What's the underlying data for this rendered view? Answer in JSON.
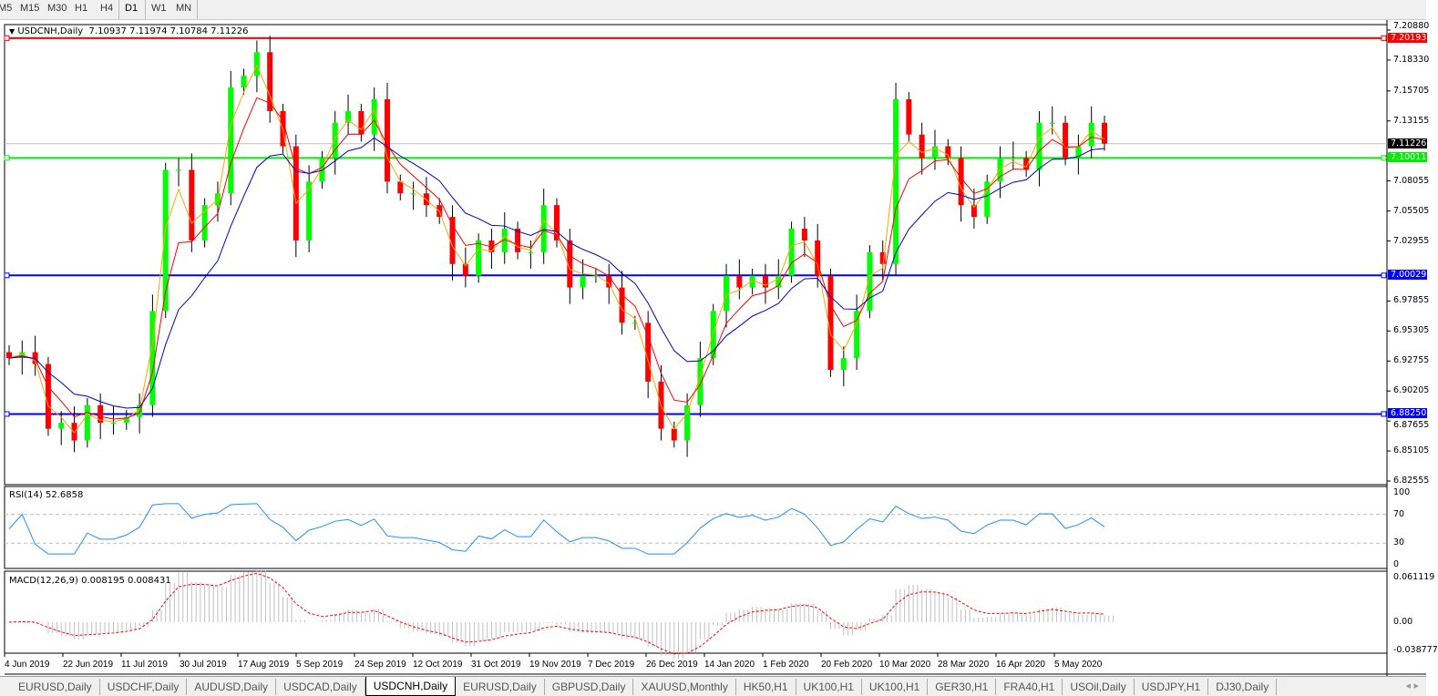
{
  "toolbar": {
    "timeframes": [
      "M5",
      "M15",
      "M30",
      "H1",
      "H4",
      "D1",
      "W1",
      "MN"
    ],
    "active": "D1"
  },
  "header": {
    "symbol": "USDCNH,Daily",
    "ohlc": "7.10937 7.11974 7.10784 7.11226"
  },
  "rsi": {
    "label": "RSI(14) 52.6858",
    "levels": [
      "100",
      "70",
      "30",
      "0"
    ]
  },
  "macd": {
    "label": "MACD(12,26,9) 0.008195 0.008431",
    "levels": [
      "0.061119",
      "0.00",
      "-0.038777"
    ]
  },
  "colors": {
    "bull": "#00ff00",
    "bear": "#ff0000",
    "ma_fast": "#ffa500",
    "ma_mid": "#ff0000",
    "ma_slow": "#0000cc",
    "rsi": "#1e90ff",
    "macd_signal": "#ff0000"
  },
  "levels": [
    {
      "value": 7.20193,
      "label": "7.20193",
      "color": "#ff0000"
    },
    {
      "value": 7.10011,
      "label": "7.10011",
      "color": "#00ee00"
    },
    {
      "value": 7.00029,
      "label": "7.00029",
      "color": "#0000ff"
    },
    {
      "value": 6.8825,
      "label": "6.88250",
      "color": "#0000ff"
    }
  ],
  "current_price": {
    "value": 7.11226,
    "label": "7.11226"
  },
  "chart_data": {
    "type": "candlestick",
    "symbol": "USDCNH",
    "timeframe": "Daily",
    "ylim": [
      6.82555,
      7.2088
    ],
    "price_ticks": [
      "7.20880",
      "7.18330",
      "7.15705",
      "7.13155",
      "7.08055",
      "7.05505",
      "7.02955",
      "6.97855",
      "6.95305",
      "6.92755",
      "6.90205",
      "6.87655",
      "6.85105",
      "6.82555"
    ],
    "x_ticks": [
      "4 Jun 2019",
      "22 Jun 2019",
      "11 Jul 2019",
      "30 Jul 2019",
      "17 Aug 2019",
      "5 Sep 2019",
      "24 Sep 2019",
      "12 Oct 2019",
      "31 Oct 2019",
      "19 Nov 2019",
      "7 Dec 2019",
      "26 Dec 2019",
      "14 Jan 2020",
      "1 Feb 2020",
      "20 Feb 2020",
      "10 Mar 2020",
      "28 Mar 2020",
      "16 Apr 2020",
      "5 May 2020"
    ],
    "closes": [
      6.93,
      6.935,
      6.925,
      6.87,
      6.875,
      6.86,
      6.89,
      6.875,
      6.875,
      6.88,
      6.89,
      6.97,
      7.09,
      7.09,
      7.03,
      7.06,
      7.07,
      7.16,
      7.17,
      7.19,
      7.14,
      7.11,
      7.03,
      7.08,
      7.1,
      7.13,
      7.14,
      7.12,
      7.15,
      7.08,
      7.07,
      7.07,
      7.06,
      7.05,
      7.01,
      7.0,
      7.03,
      7.02,
      7.04,
      7.02,
      7.02,
      7.06,
      7.03,
      6.99,
      7.0,
      7.0,
      6.99,
      6.96,
      6.96,
      6.91,
      6.87,
      6.86,
      6.89,
      6.93,
      6.97,
      7.0,
      6.99,
      7.0,
      6.99,
      7.0,
      7.04,
      7.03,
      7.0,
      6.92,
      6.93,
      6.97,
      7.02,
      7.01,
      7.15,
      7.12,
      7.1,
      7.11,
      7.1,
      7.06,
      7.05,
      7.08,
      7.1,
      7.1,
      7.09,
      7.13,
      7.13,
      7.1,
      7.11,
      7.13,
      7.11226
    ],
    "indicators": [
      "MA fast",
      "MA mid",
      "MA slow",
      "RSI(14)",
      "MACD(12,26,9)"
    ]
  },
  "tabs": [
    "EURUSD,Daily",
    "USDCHF,Daily",
    "AUDUSD,Daily",
    "USDCAD,Daily",
    "USDCNH,Daily",
    "EURUSD,Daily",
    "GBPUSD,Daily",
    "XAUUSD,Monthly",
    "HK50,H1",
    "UK100,H1",
    "UK100,H1",
    "GER30,H1",
    "FRA40,H1",
    "USOil,Daily",
    "USDJPY,H1",
    "DJ30,Daily"
  ],
  "active_tab": "USDCNH,Daily"
}
